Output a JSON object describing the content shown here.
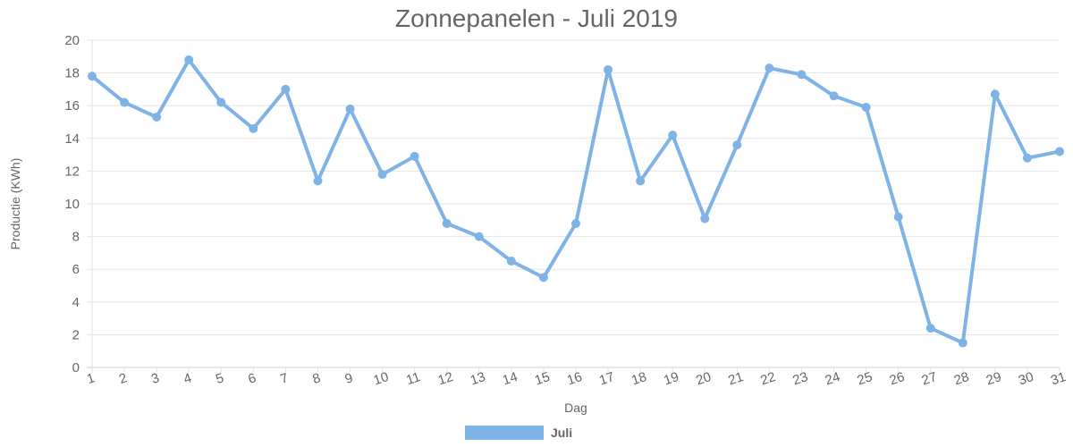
{
  "chart_data": {
    "type": "line",
    "title": "Zonnepanelen - Juli 2019",
    "xlabel": "Dag",
    "ylabel": "Productie (KWh)",
    "ylim": [
      0,
      20
    ],
    "yticks": [
      0,
      2,
      4,
      6,
      8,
      10,
      12,
      14,
      16,
      18,
      20
    ],
    "categories": [
      "1",
      "2",
      "3",
      "4",
      "5",
      "6",
      "7",
      "8",
      "9",
      "10",
      "11",
      "12",
      "13",
      "14",
      "15",
      "16",
      "17",
      "18",
      "19",
      "20",
      "21",
      "22",
      "23",
      "24",
      "25",
      "26",
      "27",
      "28",
      "29",
      "30",
      "31"
    ],
    "series": [
      {
        "name": "Juli",
        "color": "#7fb3e6",
        "values": [
          17.8,
          16.2,
          15.3,
          18.8,
          16.2,
          14.6,
          17.0,
          11.4,
          15.8,
          11.8,
          12.9,
          8.8,
          8.0,
          6.5,
          5.5,
          8.8,
          18.2,
          11.4,
          14.2,
          9.1,
          13.6,
          18.3,
          17.9,
          16.6,
          15.9,
          9.2,
          2.4,
          1.5,
          16.7,
          12.8,
          13.2
        ]
      }
    ],
    "grid": true,
    "legend": "bottom"
  }
}
